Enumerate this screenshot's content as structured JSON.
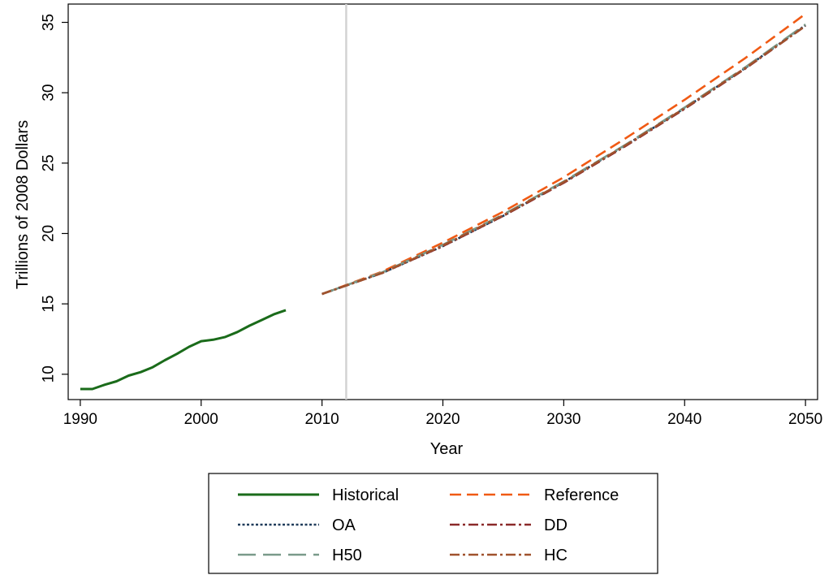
{
  "chart_data": {
    "type": "line",
    "title": "",
    "xlabel": "Year",
    "ylabel": "Trillions of 2008 Dollars",
    "xlim": [
      1989,
      2051
    ],
    "ylim": [
      8.2,
      36.3
    ],
    "x_ticks": [
      1990,
      2000,
      2010,
      2020,
      2030,
      2040,
      2050
    ],
    "y_ticks": [
      10,
      15,
      20,
      25,
      30,
      35
    ],
    "grid": false,
    "legend_placement": "bottom",
    "vertical_reference_line": {
      "x": 2012,
      "color": "#d3d3d3"
    },
    "series": [
      {
        "name": "Historical",
        "color": "#1a6b1a",
        "dash": "solid",
        "x": [
          1990,
          1991,
          1992,
          1993,
          1994,
          1995,
          1996,
          1997,
          1998,
          1999,
          2000,
          2001,
          2002,
          2003,
          2004,
          2005,
          2006,
          2007
        ],
        "y": [
          8.95,
          8.95,
          9.25,
          9.5,
          9.9,
          10.15,
          10.5,
          11.0,
          11.45,
          11.95,
          12.35,
          12.45,
          12.65,
          13.0,
          13.45,
          13.85,
          14.25,
          14.55
        ]
      },
      {
        "name": "Reference",
        "color": "#f05a14",
        "dash": "dashed",
        "x": [
          2010,
          2015,
          2020,
          2025,
          2030,
          2035,
          2040,
          2045,
          2050
        ],
        "y": [
          15.7,
          17.3,
          19.35,
          21.55,
          24.0,
          26.7,
          29.5,
          32.45,
          35.6
        ]
      },
      {
        "name": "OA",
        "color": "#1f3b5a",
        "dash": "dotted",
        "x": [
          2010,
          2015,
          2020,
          2025,
          2030,
          2035,
          2040,
          2045,
          2050
        ],
        "y": [
          15.7,
          17.2,
          19.1,
          21.25,
          23.65,
          26.2,
          28.9,
          31.75,
          34.8
        ]
      },
      {
        "name": "DD",
        "color": "#8b2a2a",
        "dash": "dashdot",
        "x": [
          2010,
          2015,
          2020,
          2025,
          2030,
          2035,
          2040,
          2045,
          2050
        ],
        "y": [
          15.7,
          17.2,
          19.1,
          21.25,
          23.6,
          26.15,
          28.85,
          31.7,
          34.75
        ]
      },
      {
        "name": "H50",
        "color": "#7a9a8a",
        "dash": "longdash",
        "x": [
          2010,
          2015,
          2020,
          2025,
          2030,
          2035,
          2040,
          2045,
          2050
        ],
        "y": [
          15.7,
          17.25,
          19.2,
          21.35,
          23.7,
          26.25,
          28.95,
          31.8,
          34.85
        ]
      },
      {
        "name": "HC",
        "color": "#a0522d",
        "dash": "dashdot",
        "x": [
          2010,
          2015,
          2020,
          2025,
          2030,
          2035,
          2040,
          2045,
          2050
        ],
        "y": [
          15.7,
          17.2,
          19.15,
          21.3,
          23.65,
          26.2,
          28.9,
          31.75,
          34.75
        ]
      }
    ]
  }
}
